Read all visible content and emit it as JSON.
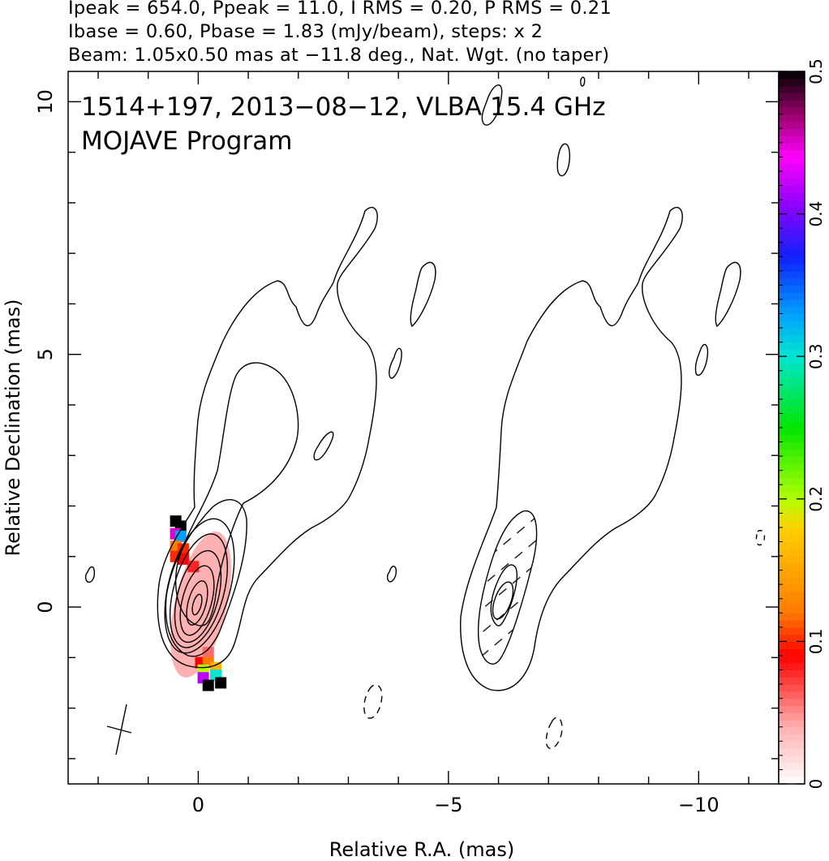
{
  "header": {
    "line1": "Ipeak = 654.0, Ppeak = 11.0, I RMS = 0.20, P RMS = 0.21",
    "line2": "Ibase = 0.60, Pbase = 1.83 (mJy/beam), steps: x 2",
    "line3": "Beam: 1.05x0.50 mas at −11.8 deg., Nat. Wgt. (no taper)"
  },
  "chart_data": {
    "type": "heatmap",
    "title": "1514+197, 2013−08−12, VLBA 15.4 GHz",
    "subtitle": "MOJAVE Program",
    "xlabel": "Relative R.A. (mas)",
    "ylabel": "Relative Declination (mas)",
    "xlim": [
      2.6,
      -11.6
    ],
    "ylim": [
      -3.5,
      10.6
    ],
    "x_reversed": true,
    "x_ticks": [
      {
        "value": 0,
        "label": "0"
      },
      {
        "value": -5,
        "label": "−5"
      },
      {
        "value": -10,
        "label": "−10"
      }
    ],
    "y_ticks": [
      {
        "value": 0,
        "label": "0"
      },
      {
        "value": 5,
        "label": "5"
      },
      {
        "value": 10,
        "label": "10"
      }
    ],
    "grid": false,
    "colorbar": {
      "range": [
        0,
        0.5
      ],
      "ticks": [
        {
          "value": 0,
          "label": "0"
        },
        {
          "value": 0.1,
          "label": "0.1"
        },
        {
          "value": 0.2,
          "label": "0.2"
        },
        {
          "value": 0.3,
          "label": "0.3"
        },
        {
          "value": 0.4,
          "label": "0.4"
        },
        {
          "value": 0.5,
          "label": "0.5"
        }
      ],
      "stops": [
        {
          "v": 0.0,
          "color": "#ffffff"
        },
        {
          "v": 0.04,
          "color": "#ffb0b0"
        },
        {
          "v": 0.09,
          "color": "#ff0000"
        },
        {
          "v": 0.12,
          "color": "#ff7a00"
        },
        {
          "v": 0.18,
          "color": "#ffd000"
        },
        {
          "v": 0.2,
          "color": "#b4ff00"
        },
        {
          "v": 0.25,
          "color": "#00e600"
        },
        {
          "v": 0.3,
          "color": "#00e6d2"
        },
        {
          "v": 0.33,
          "color": "#00a0ff"
        },
        {
          "v": 0.37,
          "color": "#1020ff"
        },
        {
          "v": 0.41,
          "color": "#9a00ff"
        },
        {
          "v": 0.44,
          "color": "#ff00ff"
        },
        {
          "v": 0.47,
          "color": "#9a006a"
        },
        {
          "v": 0.5,
          "color": "#000000"
        }
      ]
    },
    "fractional_polarization_pixels": [
      {
        "x": 0.45,
        "y": 1.7,
        "v": 0.5
      },
      {
        "x": 0.35,
        "y": 1.6,
        "v": 0.5
      },
      {
        "x": 0.45,
        "y": 1.45,
        "v": 0.45
      },
      {
        "x": 0.35,
        "y": 1.4,
        "v": 0.33
      },
      {
        "x": 0.45,
        "y": 1.2,
        "v": 0.12
      },
      {
        "x": 0.3,
        "y": 1.15,
        "v": 0.1
      },
      {
        "x": 0.45,
        "y": 1.0,
        "v": 0.1
      },
      {
        "x": 0.3,
        "y": 0.95,
        "v": 0.09
      },
      {
        "x": 0.1,
        "y": 0.8,
        "v": 0.08
      },
      {
        "x": -0.2,
        "y": -0.9,
        "v": 0.06
      },
      {
        "x": -0.05,
        "y": -1.1,
        "v": 0.09
      },
      {
        "x": -0.2,
        "y": -1.1,
        "v": 0.12
      },
      {
        "x": -0.35,
        "y": -1.2,
        "v": 0.16
      },
      {
        "x": -0.1,
        "y": -1.25,
        "v": 0.2
      },
      {
        "x": -0.35,
        "y": -1.35,
        "v": 0.3
      },
      {
        "x": -0.1,
        "y": -1.4,
        "v": 0.42
      },
      {
        "x": -0.45,
        "y": -1.5,
        "v": 0.5
      },
      {
        "x": -0.2,
        "y": -1.55,
        "v": 0.5
      }
    ],
    "panels": [
      {
        "name": "total-intensity-with-polarization",
        "x_offset": 0
      },
      {
        "name": "polarized-intensity-with-evpa",
        "x_offset": -6.06
      }
    ],
    "contour_base_mJy": 0.6,
    "contour_step": "x 2",
    "beam": {
      "major_mas": 1.05,
      "minor_mas": 0.5,
      "pa_deg": -11.8,
      "x": 1.5,
      "y": -2.75
    }
  }
}
